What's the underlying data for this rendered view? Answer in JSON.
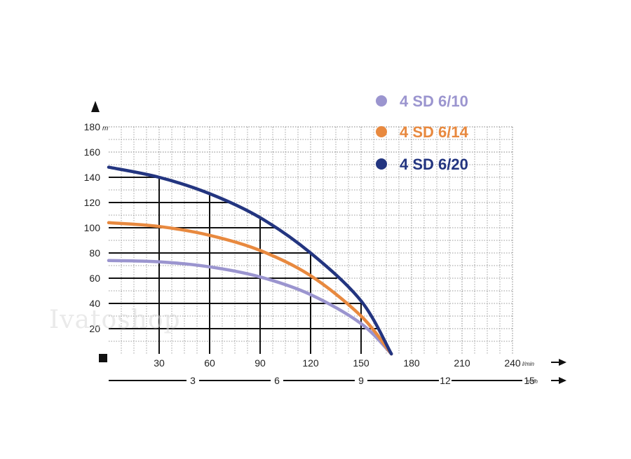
{
  "chart_data": {
    "type": "line",
    "ylabel_unit": "m",
    "x_unit": "l/min",
    "x2_unit": "m³/h",
    "ylim": [
      0,
      180
    ],
    "xlim": [
      0,
      240
    ],
    "y_ticks": [
      20,
      40,
      60,
      80,
      100,
      120,
      140,
      160,
      180
    ],
    "x_ticks": [
      30,
      60,
      90,
      120,
      150,
      180,
      210,
      240
    ],
    "x2_ticks": [
      3,
      6,
      9,
      12,
      15
    ],
    "grid": true,
    "legend_position": "top-right",
    "series": [
      {
        "name": "4 SD 6/10",
        "color": "#9b95cf",
        "x": [
          0,
          30,
          60,
          90,
          120,
          150,
          168
        ],
        "y": [
          74,
          73,
          69,
          61,
          47,
          24,
          0
        ]
      },
      {
        "name": "4 SD 6/14",
        "color": "#e8893f",
        "x": [
          0,
          30,
          60,
          90,
          120,
          150,
          168
        ],
        "y": [
          104,
          101,
          94,
          82,
          62,
          30,
          0
        ]
      },
      {
        "name": "4 SD 6/20",
        "color": "#233580",
        "x": [
          0,
          30,
          60,
          90,
          120,
          150,
          168
        ],
        "y": [
          148,
          140,
          127,
          108,
          80,
          42,
          0
        ]
      }
    ]
  },
  "watermark": "Ivatoshop"
}
